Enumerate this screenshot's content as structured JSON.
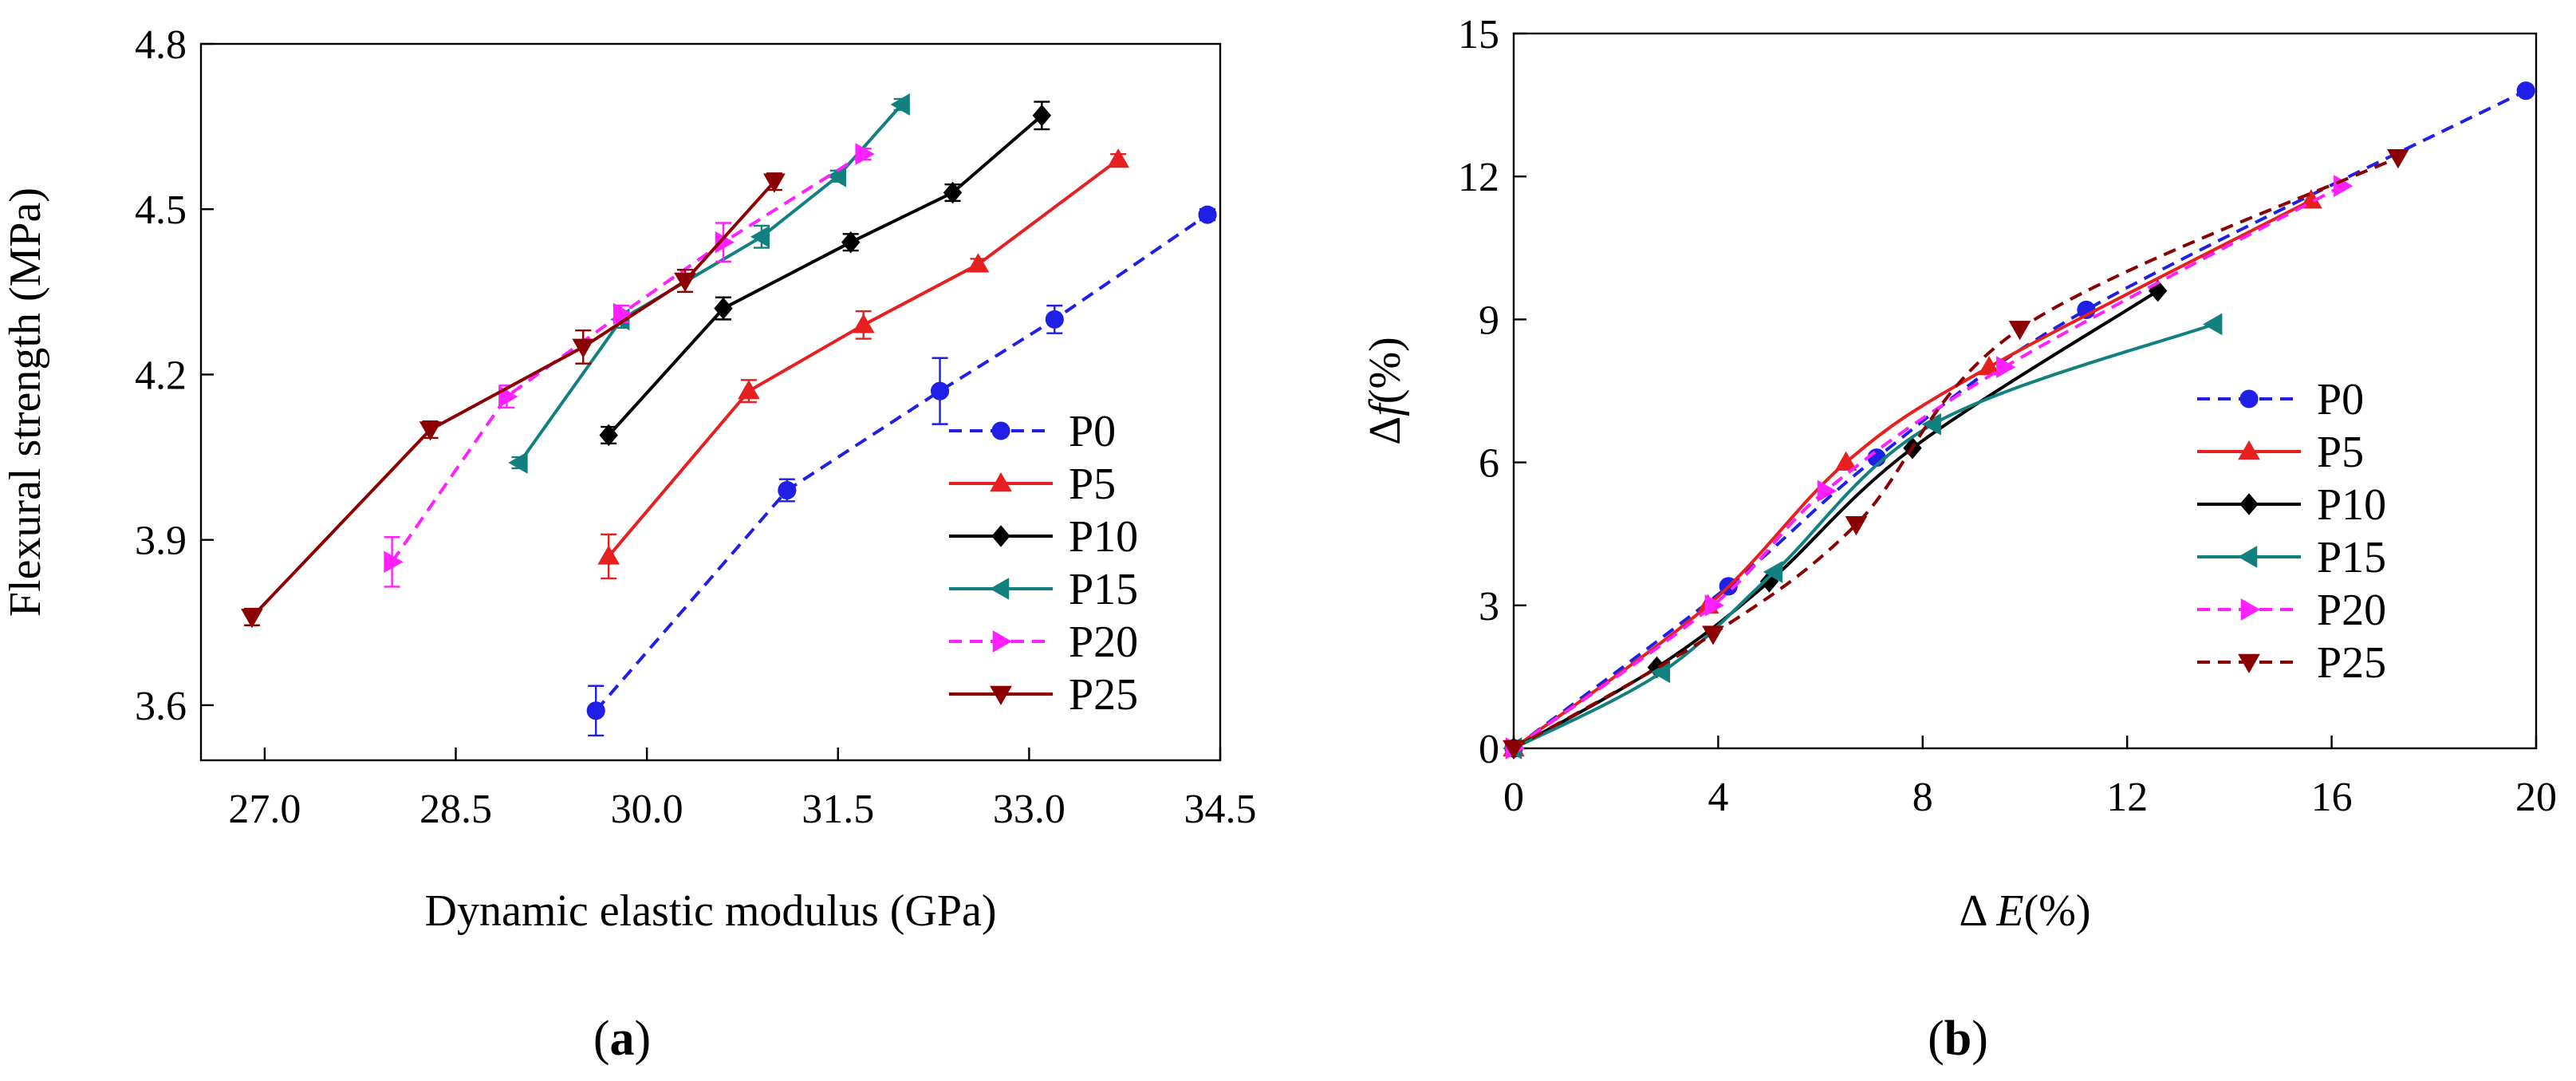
{
  "chart_data": [
    {
      "type": "line",
      "panel_label": "a",
      "xlabel": "Dynamic elastic modulus (GPa)",
      "ylabel": "Flexural strength (MPa)",
      "xlim": [
        26.5,
        34.5
      ],
      "ylim": [
        3.5,
        4.8
      ],
      "xticks": [
        "27.0",
        "28.5",
        "30.0",
        "31.5",
        "33.0",
        "34.5"
      ],
      "yticks": [
        "3.6",
        "3.9",
        "4.2",
        "4.5",
        "4.8"
      ],
      "grid": false,
      "legend_position": "bottom-right",
      "series": [
        {
          "name": "P0",
          "color": "#1f1fe6",
          "dash": "dashed",
          "marker": "circle",
          "smooth": false,
          "points": [
            [
              29.6,
              3.59
            ],
            [
              31.1,
              3.99
            ],
            [
              32.3,
              4.17
            ],
            [
              33.2,
              4.3
            ],
            [
              34.4,
              4.49
            ]
          ],
          "errors": [
            0.045,
            0.02,
            0.06,
            0.025,
            0.01
          ]
        },
        {
          "name": "P5",
          "color": "#e62020",
          "dash": "solid",
          "marker": "triangle-up",
          "smooth": false,
          "points": [
            [
              29.7,
              3.87
            ],
            [
              30.8,
              4.17
            ],
            [
              31.7,
              4.29
            ],
            [
              32.6,
              4.4
            ],
            [
              33.7,
              4.59
            ]
          ],
          "errors": [
            0.04,
            0.02,
            0.025,
            0.01,
            0.01
          ]
        },
        {
          "name": "P10",
          "color": "#000000",
          "dash": "solid",
          "marker": "diamond",
          "smooth": false,
          "points": [
            [
              29.7,
              4.09
            ],
            [
              30.6,
              4.32
            ],
            [
              31.6,
              4.44
            ],
            [
              32.4,
              4.53
            ],
            [
              33.1,
              4.67
            ]
          ],
          "errors": [
            0.015,
            0.02,
            0.015,
            0.015,
            0.025
          ]
        },
        {
          "name": "P15",
          "color": "#138080",
          "dash": "solid",
          "marker": "triangle-left",
          "smooth": false,
          "points": [
            [
              29.0,
              4.04
            ],
            [
              29.8,
              4.3
            ],
            [
              30.9,
              4.45
            ],
            [
              31.5,
              4.56
            ],
            [
              32.0,
              4.69
            ]
          ],
          "errors": [
            0.01,
            0.015,
            0.02,
            0.01,
            0.01
          ]
        },
        {
          "name": "P20",
          "color": "#ff20ff",
          "dash": "dashed",
          "marker": "triangle-right",
          "smooth": false,
          "points": [
            [
              28.0,
              3.86
            ],
            [
              28.9,
              4.16
            ],
            [
              29.8,
              4.31
            ],
            [
              30.6,
              4.44
            ],
            [
              31.7,
              4.6
            ]
          ],
          "errors": [
            0.045,
            0.02,
            0.015,
            0.035,
            0.01
          ]
        },
        {
          "name": "P25",
          "color": "#8b0000",
          "dash": "solid",
          "marker": "triangle-down",
          "smooth": false,
          "points": [
            [
              26.9,
              3.76
            ],
            [
              28.3,
              4.1
            ],
            [
              29.5,
              4.25
            ],
            [
              30.3,
              4.37
            ],
            [
              31.0,
              4.55
            ]
          ],
          "errors": [
            0.015,
            0.015,
            0.03,
            0.02,
            0.015
          ]
        }
      ]
    },
    {
      "type": "line",
      "panel_label": "b",
      "xlabel_prefix": "Δ ",
      "xlabel_var": "E",
      "xlabel_suffix": "(%)",
      "ylabel_prefix": "Δ",
      "ylabel_var": "f",
      "ylabel_suffix": "(%)",
      "xlim": [
        0,
        20
      ],
      "ylim": [
        0,
        15
      ],
      "xticks": [
        "0",
        "4",
        "8",
        "12",
        "16",
        "20"
      ],
      "yticks": [
        "0",
        "3",
        "6",
        "9",
        "12",
        "15"
      ],
      "grid": false,
      "legend_position": "right",
      "series": [
        {
          "name": "P0",
          "color": "#1f1fe6",
          "dash": "dashed",
          "marker": "circle",
          "smooth": true,
          "points": [
            [
              0.0,
              0.0
            ],
            [
              4.2,
              3.4
            ],
            [
              7.1,
              6.1
            ],
            [
              11.2,
              9.2
            ],
            [
              19.8,
              13.8
            ]
          ]
        },
        {
          "name": "P5",
          "color": "#e62020",
          "dash": "solid",
          "marker": "triangle-up",
          "smooth": true,
          "points": [
            [
              0.0,
              0.0
            ],
            [
              3.8,
              3.0
            ],
            [
              6.5,
              6.0
            ],
            [
              9.3,
              8.0
            ],
            [
              15.6,
              11.5
            ]
          ]
        },
        {
          "name": "P10",
          "color": "#000000",
          "dash": "solid",
          "marker": "diamond",
          "smooth": true,
          "points": [
            [
              0.0,
              0.0
            ],
            [
              2.8,
              1.7
            ],
            [
              5.0,
              3.5
            ],
            [
              7.8,
              6.3
            ],
            [
              12.6,
              9.6
            ]
          ]
        },
        {
          "name": "P15",
          "color": "#138080",
          "dash": "solid",
          "marker": "triangle-left",
          "smooth": true,
          "points": [
            [
              0.0,
              0.0
            ],
            [
              2.9,
              1.6
            ],
            [
              5.1,
              3.7
            ],
            [
              8.2,
              6.8
            ],
            [
              13.7,
              8.9
            ]
          ]
        },
        {
          "name": "P20",
          "color": "#ff20ff",
          "dash": "dashed",
          "marker": "triangle-right",
          "smooth": true,
          "points": [
            [
              0.0,
              0.0
            ],
            [
              3.9,
              3.0
            ],
            [
              6.1,
              5.4
            ],
            [
              9.6,
              8.0
            ],
            [
              16.2,
              11.8
            ]
          ]
        },
        {
          "name": "P25",
          "color": "#8b0000",
          "dash": "dashed",
          "marker": "triangle-down",
          "smooth": true,
          "points": [
            [
              0.0,
              0.0
            ],
            [
              3.9,
              2.4
            ],
            [
              6.7,
              4.7
            ],
            [
              9.9,
              8.8
            ],
            [
              17.3,
              12.4
            ]
          ]
        }
      ]
    }
  ]
}
